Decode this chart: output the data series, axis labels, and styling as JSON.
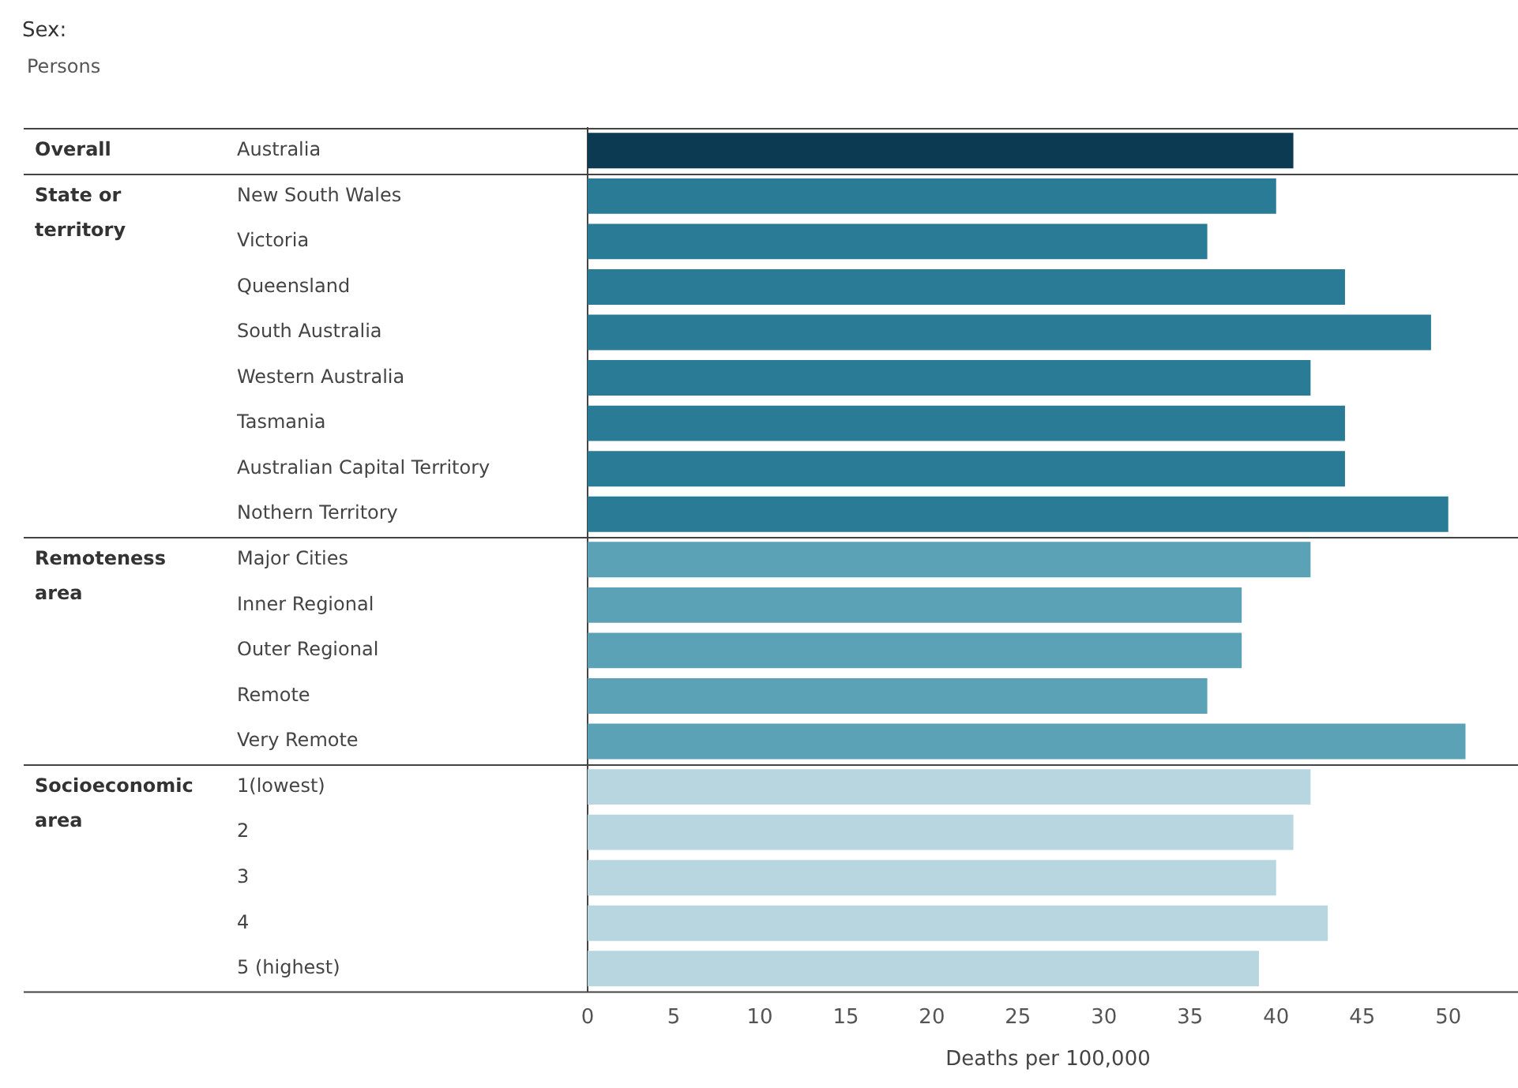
{
  "chart_data": {
    "type": "bar",
    "orientation": "horizontal",
    "title": "Sex:",
    "subtitle": "Persons",
    "xlabel": "Deaths per 100,000",
    "categories": [
      "Australia",
      "New South Wales",
      "Victoria",
      "Queensland",
      "South Australia",
      "Western Australia",
      "Tasmania",
      "Australian Capital Territory",
      "Nothern Territory",
      "Major Cities",
      "Inner Regional",
      "Outer Regional",
      "Remote",
      "Very Remote",
      "1(lowest)",
      "2",
      "3",
      "4",
      "5 (highest)"
    ],
    "values": [
      41,
      40,
      36,
      44,
      49,
      42,
      44,
      44,
      50,
      42,
      38,
      38,
      36,
      51,
      42,
      41,
      40,
      43,
      39
    ],
    "colors": [
      "#0b3a52",
      "#2a7b96",
      "#2a7b96",
      "#2a7b96",
      "#2a7b96",
      "#2a7b96",
      "#2a7b96",
      "#2a7b96",
      "#2a7b96",
      "#5ba2b6",
      "#5ba2b6",
      "#5ba2b6",
      "#5ba2b6",
      "#5ba2b6",
      "#b8d6e0",
      "#b8d6e0",
      "#b8d6e0",
      "#b8d6e0",
      "#b8d6e0"
    ],
    "annotations": [
      "Overall",
      "State or territory",
      "Remoteness area",
      "Socioeconomic area"
    ],
    "xlim": [
      0,
      53.5
    ],
    "xticks": [
      0,
      5,
      10,
      15,
      20,
      25,
      30,
      35,
      40,
      45,
      50
    ],
    "grid": false,
    "legend": false
  }
}
